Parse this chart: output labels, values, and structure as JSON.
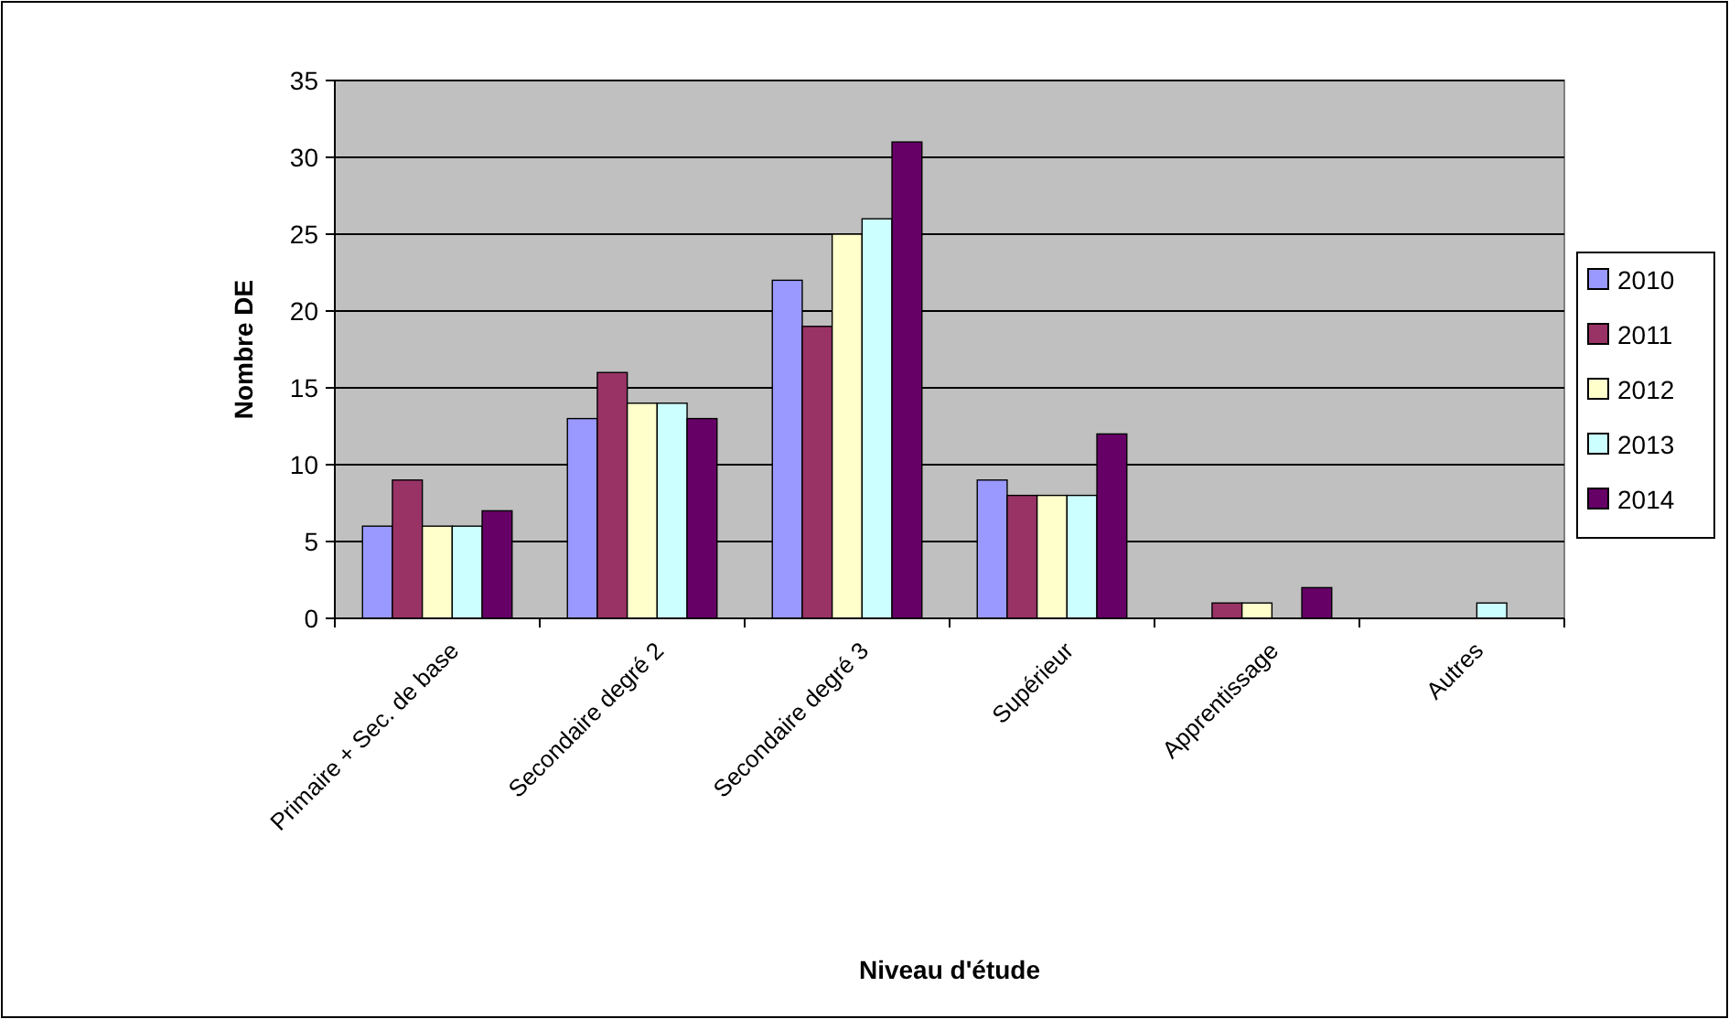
{
  "chart_data": {
    "type": "bar",
    "xlabel": "Niveau d'étude",
    "ylabel": "Nombre DE",
    "categories": [
      "Primaire + Sec. de base",
      "Secondaire degré 2",
      "Secondaire degré 3",
      "Supérieur",
      "Apprentissage",
      "Autres"
    ],
    "series": [
      {
        "name": "2010",
        "color": "#9999ff",
        "values": [
          6,
          13,
          22,
          9,
          0,
          0
        ]
      },
      {
        "name": "2011",
        "color": "#993366",
        "values": [
          9,
          16,
          19,
          8,
          1,
          0
        ]
      },
      {
        "name": "2012",
        "color": "#ffffcc",
        "values": [
          6,
          14,
          25,
          8,
          1,
          0
        ]
      },
      {
        "name": "2013",
        "color": "#ccffff",
        "values": [
          6,
          14,
          26,
          8,
          0,
          1
        ]
      },
      {
        "name": "2014",
        "color": "#660066",
        "values": [
          7,
          13,
          31,
          12,
          2,
          0
        ]
      }
    ],
    "ylim": [
      0,
      35
    ],
    "yticks": [
      0,
      5,
      10,
      15,
      20,
      25,
      30,
      35
    ],
    "grid": "y",
    "legend": "right"
  }
}
